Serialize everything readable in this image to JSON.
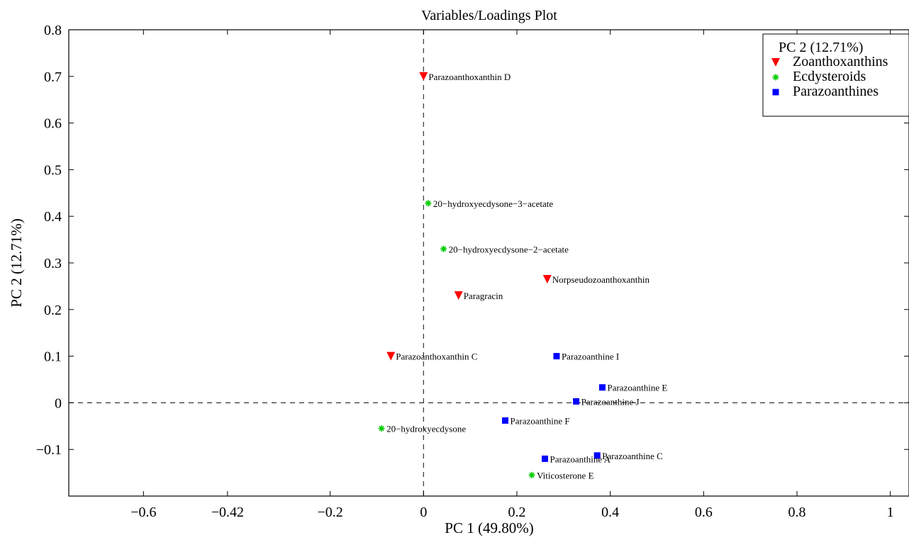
{
  "chart_data": {
    "type": "scatter",
    "title": "Variables/Loadings Plot",
    "xlabel": "PC 1 (49.80%)",
    "ylabel": "PC 2 (12.71%)",
    "xlim": [
      -0.76,
      1.04
    ],
    "ylim": [
      -0.2,
      0.8
    ],
    "xticks": [
      -0.6,
      -0.42,
      -0.2,
      0,
      0.2,
      0.4,
      0.6,
      0.8,
      1
    ],
    "xtick_labels": [
      "−0.6",
      "−0.42",
      "−0.2",
      "0",
      "0.2",
      "0.4",
      "0.6",
      "0.8",
      "1"
    ],
    "yticks": [
      -0.1,
      0,
      0.1,
      0.2,
      0.3,
      0.4,
      0.5,
      0.6,
      0.7,
      0.8
    ],
    "ytick_labels": [
      "−0.1",
      "0",
      "0.1",
      "0.2",
      "0.3",
      "0.4",
      "0.5",
      "0.6",
      "0.7",
      "0.8"
    ],
    "reference_lines": {
      "x": 0,
      "y": 0,
      "style": "dashed"
    },
    "legend": {
      "title": "PC 2 (12.71%)",
      "position": "top-right"
    },
    "series": [
      {
        "name": "Zoanthoxanthins",
        "marker": "triangle-down",
        "color": "#ff0000",
        "points": [
          {
            "label": "Parazoanthoxanthin D",
            "x": 0.0,
            "y": 0.7
          },
          {
            "label": "Norpseudozoanthoxanthin",
            "x": 0.265,
            "y": 0.265
          },
          {
            "label": "Paragracin",
            "x": 0.075,
            "y": 0.23
          },
          {
            "label": "Parazoanthoxanthin C",
            "x": -0.07,
            "y": 0.1
          }
        ]
      },
      {
        "name": "Ecdysteroids",
        "marker": "asterisk",
        "color": "#00cc00",
        "points": [
          {
            "label": "20−hydroxyecdysone−3−acetate",
            "x": 0.01,
            "y": 0.428
          },
          {
            "label": "20−hydroxyecdysone−2−acetate",
            "x": 0.043,
            "y": 0.33
          },
          {
            "label": "20−hydroxyecdysone",
            "x": -0.09,
            "y": -0.055
          },
          {
            "label": "Viticosterone E",
            "x": 0.232,
            "y": -0.155
          }
        ]
      },
      {
        "name": "Parazoanthines",
        "marker": "square",
        "color": "#0000ff",
        "points": [
          {
            "label": "Parazoanthine I",
            "x": 0.285,
            "y": 0.1
          },
          {
            "label": "Parazoanthine E",
            "x": 0.383,
            "y": 0.033
          },
          {
            "label": "Parazoanthine J",
            "x": 0.327,
            "y": 0.003
          },
          {
            "label": "Parazoanthine F",
            "x": 0.175,
            "y": -0.038
          },
          {
            "label": "Parazoanthine C",
            "x": 0.372,
            "y": -0.113
          },
          {
            "label": "Parazoanthine A",
            "x": 0.26,
            "y": -0.12
          }
        ]
      }
    ]
  }
}
